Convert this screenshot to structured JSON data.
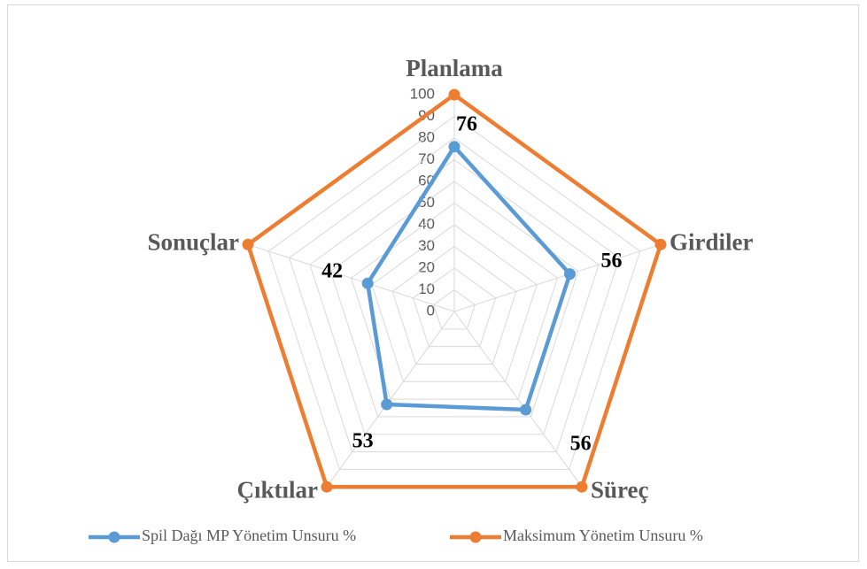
{
  "chart_data": {
    "type": "radar",
    "categories": [
      "Planlama",
      "Girdiler",
      "Süreç",
      "Çıktılar",
      "Sonuçlar"
    ],
    "series": [
      {
        "name": "Spil Dağı MP Yönetim Unsuru %",
        "color": "#5b9bd5",
        "values": [
          76,
          56,
          56,
          53,
          42
        ]
      },
      {
        "name": "Maksimum Yönetim Unsuru %",
        "color": "#ed7d31",
        "values": [
          100,
          100,
          100,
          100,
          100
        ]
      }
    ],
    "ylim": [
      0,
      100
    ],
    "yticks": [
      0,
      10,
      20,
      30,
      40,
      50,
      60,
      70,
      80,
      90,
      100
    ],
    "grid": true,
    "legend": "bottom"
  }
}
